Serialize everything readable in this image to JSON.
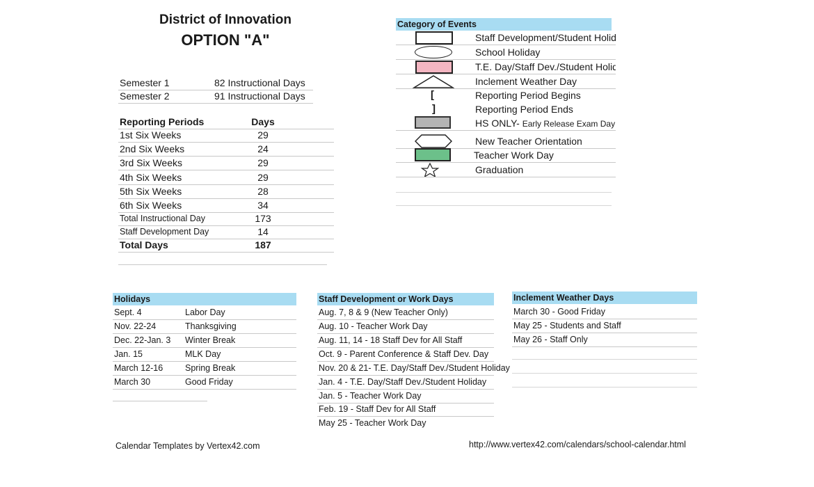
{
  "header": {
    "title": "District of Innovation",
    "option": "OPTION \"A\""
  },
  "semesters": [
    {
      "label": "Semester 1",
      "value": "82 Instructional Days"
    },
    {
      "label": "Semester 2",
      "value": "91 Instructional Days"
    }
  ],
  "reporting": {
    "header_label": "Reporting Periods",
    "header_days": "Days",
    "rows": [
      {
        "label": "1st Six Weeks",
        "days": "29"
      },
      {
        "label": "2nd Six Weeks",
        "days": "24"
      },
      {
        "label": "3rd Six Weeks",
        "days": "29"
      },
      {
        "label": "4th Six Weeks",
        "days": "29"
      },
      {
        "label": "5th Six Weeks",
        "days": "28"
      },
      {
        "label": "6th Six Weeks",
        "days": "34"
      },
      {
        "label": "Total Instructional Day",
        "days": "173"
      },
      {
        "label": "Staff Development Day",
        "days": "14"
      }
    ],
    "total_label": "Total Days",
    "total_days": "187"
  },
  "categories": {
    "title": "Category of Events",
    "items": [
      {
        "label": "Staff Development/Student Holiday",
        "symbol": "rectangle-outline"
      },
      {
        "label": "School Holiday",
        "symbol": "ellipse-outline"
      },
      {
        "label": "T.E. Day/Staff Dev./Student Holiday",
        "symbol": "pink-rectangle",
        "color": "#f4b6c2"
      },
      {
        "label": "Inclement Weather Day",
        "symbol": "triangle-outline"
      },
      {
        "label": "Reporting Period Begins",
        "symbol": "open-bracket"
      },
      {
        "label": "Reporting Period Ends",
        "symbol": "close-bracket"
      },
      {
        "label": "HS ONLY-",
        "label_small": "Early Release Exam Day",
        "symbol": "gray-rectangle",
        "color": "#b4b4b4"
      },
      {
        "label": "New Teacher Orientation",
        "symbol": "hexagon-outline"
      },
      {
        "label": "Teacher Work Day",
        "symbol": "green-rectangle",
        "color": "#6cc08a"
      },
      {
        "label": "Graduation",
        "symbol": "star-outline"
      }
    ]
  },
  "holidays": {
    "title": "Holidays",
    "rows": [
      {
        "date": "Sept. 4",
        "name": "Labor Day"
      },
      {
        "date": "Nov. 22-24",
        "name": "Thanksgiving"
      },
      {
        "date": "Dec. 22-Jan. 3",
        "name": "Winter Break"
      },
      {
        "date": "Jan. 15",
        "name": "MLK Day"
      },
      {
        "date": "March 12-16",
        "name": "Spring Break"
      },
      {
        "date": "March 30",
        "name": "Good Friday"
      }
    ]
  },
  "staff_dev": {
    "title": "Staff Development or Work Days",
    "rows": [
      "Aug. 7, 8 & 9 (New Teacher Only)",
      "Aug. 10 - Teacher Work Day",
      "Aug. 11, 14 - 18 Staff Dev for All Staff",
      "Oct. 9 - Parent Conference & Staff Dev. Day",
      "Nov. 20 & 21- T.E. Day/Staff Dev./Student Holiday",
      "Jan. 4 - T.E. Day/Staff Dev./Student Holiday",
      "Jan. 5 - Teacher Work Day",
      "Feb. 19 - Staff Dev for All Staff",
      "May 25 - Teacher Work Day"
    ]
  },
  "inclement": {
    "title": "Inclement Weather Days",
    "rows": [
      "March 30 - Good Friday",
      "May 25  - Students and Staff",
      "May 26 - Staff Only"
    ]
  },
  "footer": {
    "credit": "Calendar Templates by Vertex42.com",
    "url": "http://www.vertex42.com/calendars/school-calendar.html"
  }
}
